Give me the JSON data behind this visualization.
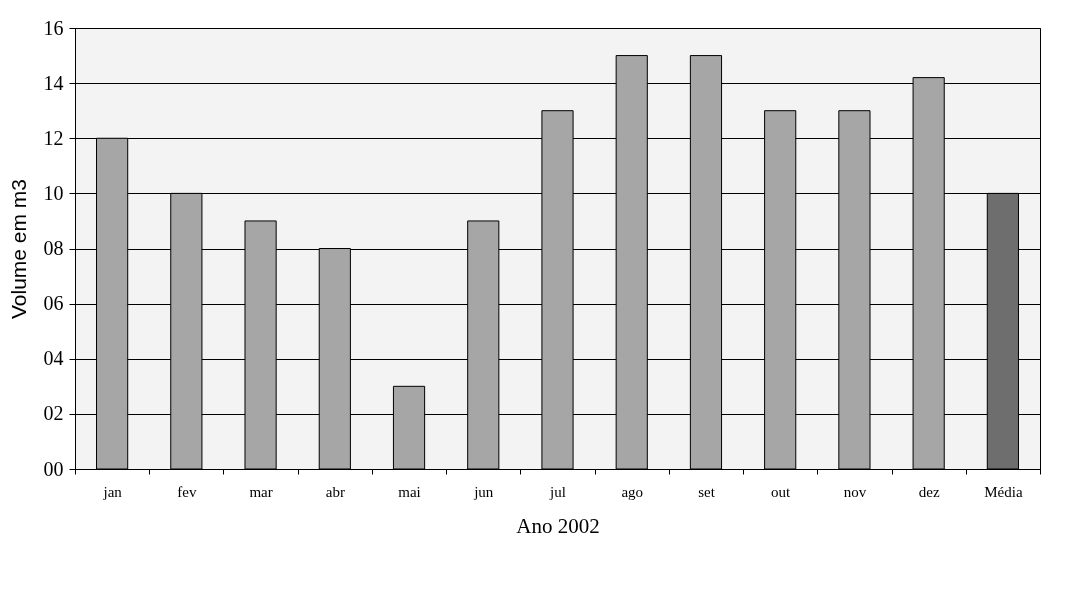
{
  "chart_data": {
    "type": "bar",
    "xlabel": "Ano 2002",
    "ylabel": "Volume em m3",
    "categories": [
      "jan",
      "fev",
      "mar",
      "abr",
      "mai",
      "jun",
      "jul",
      "ago",
      "set",
      "out",
      "nov",
      "dez",
      "Média"
    ],
    "values": [
      12,
      10,
      9,
      8,
      3,
      9,
      13,
      15,
      15,
      13,
      13,
      14.2,
      10
    ],
    "colors": [
      "#a6a6a6",
      "#a6a6a6",
      "#a6a6a6",
      "#a6a6a6",
      "#a6a6a6",
      "#a6a6a6",
      "#a6a6a6",
      "#a6a6a6",
      "#a6a6a6",
      "#a6a6a6",
      "#a6a6a6",
      "#a6a6a6",
      "#6e6e6e"
    ],
    "ylim": [
      0,
      16
    ],
    "yticks": [
      {
        "value": 0,
        "label": "00"
      },
      {
        "value": 2,
        "label": "02"
      },
      {
        "value": 4,
        "label": "04"
      },
      {
        "value": 6,
        "label": "06"
      },
      {
        "value": 8,
        "label": "08"
      },
      10,
      12,
      14,
      16
    ],
    "grid": "y"
  }
}
